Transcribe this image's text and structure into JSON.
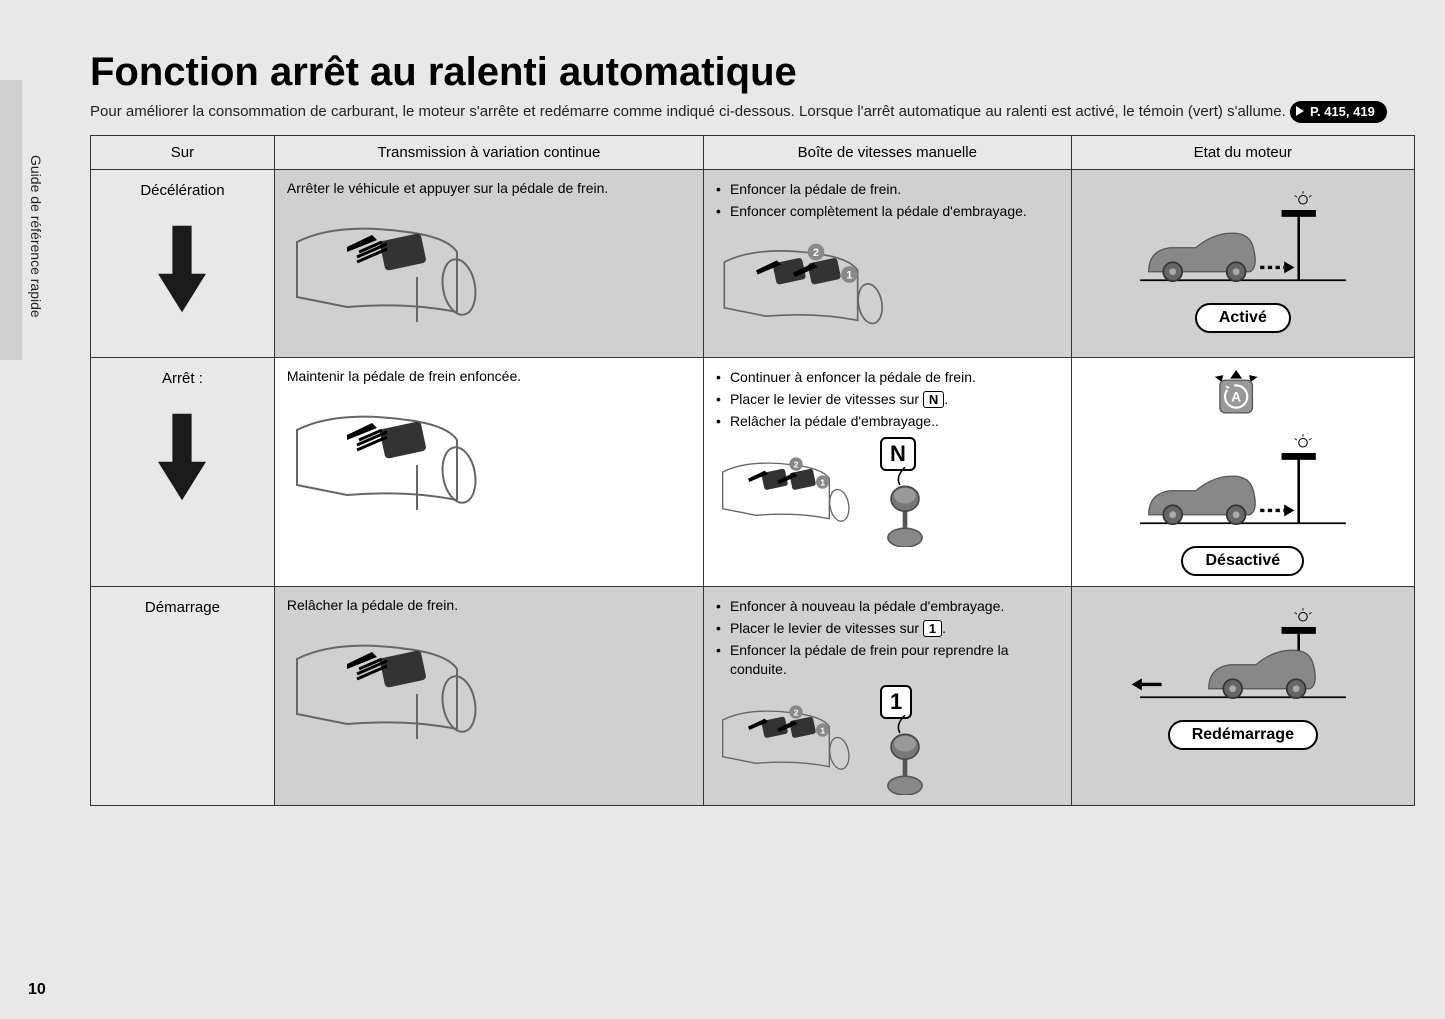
{
  "page": {
    "side_label": "Guide de référence rapide",
    "page_number": "10",
    "title": "Fonction arrêt au ralenti automatique",
    "intro_part1": "Pour améliorer la consommation de carburant, le moteur s'arrête et redémarre comme indiqué ci-dessous. Lorsque l'arrêt automatique au ralenti est activé, le témoin (vert) s'allume. ",
    "page_ref": "P. 415, 419"
  },
  "headers": {
    "c1": "Sur",
    "c2": "Transmission à variation continue",
    "c3": "Boîte de vitesses manuelle",
    "c4": "Etat du moteur"
  },
  "rows": [
    {
      "phase": "Décélération",
      "show_arrow": true,
      "cvt_caption": "Arrêter le véhicule et appuyer sur la pédale de frein.",
      "manual_bullets": [
        "Enfoncer la pédale de frein.",
        "Enfoncer complètement la pédale d'embrayage."
      ],
      "manual_key": null,
      "show_indicator": false,
      "status": "Activé",
      "car_dir": "stop"
    },
    {
      "phase": "Arrêt :",
      "show_arrow": true,
      "cvt_caption": "Maintenir la pédale de frein enfoncée.",
      "manual_bullets": [
        "Continuer à enfoncer la pédale de frein.",
        "Placer le levier de vitesses sur |N|.",
        "Relâcher la pédale d'embrayage.."
      ],
      "manual_key": "N",
      "show_indicator": true,
      "status": "Désactivé",
      "car_dir": "stop"
    },
    {
      "phase": "Démarrage",
      "show_arrow": false,
      "cvt_caption": "Relâcher la pédale de frein.",
      "manual_bullets": [
        "Enfoncer à nouveau la pédale d'embrayage.",
        "Placer le levier de vitesses sur |1|.",
        "Enfoncer la pédale de frein pour reprendre la conduite."
      ],
      "manual_key": "1",
      "show_indicator": false,
      "status": "Redémarrage",
      "car_dir": "go"
    }
  ],
  "colors": {
    "page_bg": "#e8e8e8",
    "cell_gray": "#d0d0d0",
    "cell_white": "#ffffff",
    "border": "#333333",
    "text": "#000000"
  }
}
